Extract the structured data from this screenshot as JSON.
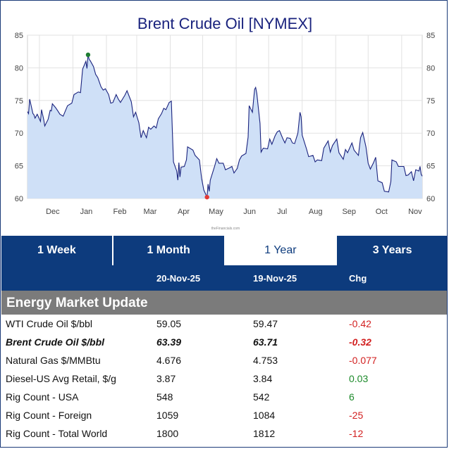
{
  "chart": {
    "title": "Brent Crude Oil [NYMEX]",
    "watermark": "theFinancials.com",
    "fill_color": "#cfe0f7",
    "line_color": "#1a237e",
    "high_marker_color": "#1e7d32",
    "low_marker_color": "#e53935",
    "y_ticks": [
      "85",
      "80",
      "75",
      "70",
      "65",
      "60"
    ],
    "x_ticks": [
      "Dec",
      "Jan",
      "Feb",
      "Mar",
      "Apr",
      "May",
      "Jun",
      "Jul",
      "Aug",
      "Sep",
      "Oct",
      "Nov"
    ]
  },
  "chart_data": {
    "type": "area",
    "title": "Brent Crude Oil [NYMEX]",
    "ylim": [
      60,
      85
    ],
    "x_range": [
      "2024-11-20",
      "2025-11-20"
    ],
    "grid": true,
    "y_ticks": [
      60,
      65,
      70,
      75,
      80,
      85
    ],
    "x_ticks": [
      {
        "label": "Dec",
        "date": "2024-12-01"
      },
      {
        "label": "Jan",
        "date": "2025-01-01"
      },
      {
        "label": "Feb",
        "date": "2025-02-01"
      },
      {
        "label": "Mar",
        "date": "2025-03-01"
      },
      {
        "label": "Apr",
        "date": "2025-04-01"
      },
      {
        "label": "May",
        "date": "2025-05-01"
      },
      {
        "label": "Jun",
        "date": "2025-06-01"
      },
      {
        "label": "Jul",
        "date": "2025-07-01"
      },
      {
        "label": "Aug",
        "date": "2025-08-01"
      },
      {
        "label": "Sep",
        "date": "2025-09-01"
      },
      {
        "label": "Oct",
        "date": "2025-10-01"
      },
      {
        "label": "Nov",
        "date": "2025-11-01"
      }
    ],
    "series": [
      {
        "points": [
          [
            "2024-11-20",
            73.3
          ],
          [
            "2024-11-21",
            73.0
          ],
          [
            "2024-11-22",
            75.2
          ],
          [
            "2024-11-25",
            73.0
          ],
          [
            "2024-11-26",
            72.8
          ],
          [
            "2024-11-27",
            72.3
          ],
          [
            "2024-11-29",
            72.9
          ],
          [
            "2024-12-02",
            71.8
          ],
          [
            "2024-12-03",
            73.6
          ],
          [
            "2024-12-05",
            72.1
          ],
          [
            "2024-12-06",
            71.1
          ],
          [
            "2024-12-09",
            72.1
          ],
          [
            "2024-12-11",
            73.5
          ],
          [
            "2024-12-12",
            73.4
          ],
          [
            "2024-12-13",
            74.5
          ],
          [
            "2024-12-16",
            73.9
          ],
          [
            "2024-12-18",
            73.4
          ],
          [
            "2024-12-20",
            72.9
          ],
          [
            "2024-12-23",
            72.6
          ],
          [
            "2024-12-27",
            74.2
          ],
          [
            "2024-12-31",
            74.6
          ],
          [
            "2025-01-02",
            75.9
          ],
          [
            "2025-01-06",
            76.3
          ],
          [
            "2025-01-08",
            76.2
          ],
          [
            "2025-01-10",
            79.8
          ],
          [
            "2025-01-13",
            81.0
          ],
          [
            "2025-01-14",
            79.9
          ],
          [
            "2025-01-15",
            82.0
          ],
          [
            "2025-01-16",
            81.3
          ],
          [
            "2025-01-17",
            81.1
          ],
          [
            "2025-01-20",
            80.2
          ],
          [
            "2025-01-22",
            79.0
          ],
          [
            "2025-01-24",
            78.5
          ],
          [
            "2025-01-27",
            77.1
          ],
          [
            "2025-01-29",
            76.6
          ],
          [
            "2025-01-31",
            76.8
          ],
          [
            "2025-02-03",
            75.9
          ],
          [
            "2025-02-05",
            74.6
          ],
          [
            "2025-02-07",
            74.7
          ],
          [
            "2025-02-10",
            75.9
          ],
          [
            "2025-02-12",
            75.2
          ],
          [
            "2025-02-14",
            74.7
          ],
          [
            "2025-02-18",
            75.8
          ],
          [
            "2025-02-20",
            76.5
          ],
          [
            "2025-02-24",
            74.8
          ],
          [
            "2025-02-26",
            72.5
          ],
          [
            "2025-02-28",
            73.2
          ],
          [
            "2025-03-03",
            71.6
          ],
          [
            "2025-03-05",
            69.3
          ],
          [
            "2025-03-07",
            70.4
          ],
          [
            "2025-03-10",
            69.3
          ],
          [
            "2025-03-12",
            70.9
          ],
          [
            "2025-03-14",
            70.6
          ],
          [
            "2025-03-17",
            71.1
          ],
          [
            "2025-03-19",
            70.8
          ],
          [
            "2025-03-21",
            72.2
          ],
          [
            "2025-03-24",
            73.0
          ],
          [
            "2025-03-26",
            73.8
          ],
          [
            "2025-03-28",
            73.6
          ],
          [
            "2025-03-31",
            74.7
          ],
          [
            "2025-04-02",
            74.9
          ],
          [
            "2025-04-03",
            70.1
          ],
          [
            "2025-04-04",
            65.6
          ],
          [
            "2025-04-07",
            64.2
          ],
          [
            "2025-04-08",
            62.8
          ],
          [
            "2025-04-09",
            65.5
          ],
          [
            "2025-04-10",
            63.3
          ],
          [
            "2025-04-11",
            64.8
          ],
          [
            "2025-04-14",
            64.9
          ],
          [
            "2025-04-16",
            65.9
          ],
          [
            "2025-04-17",
            67.9
          ],
          [
            "2025-04-22",
            67.4
          ],
          [
            "2025-04-24",
            66.6
          ],
          [
            "2025-04-28",
            65.9
          ],
          [
            "2025-04-30",
            63.1
          ],
          [
            "2025-05-02",
            61.3
          ],
          [
            "2025-05-05",
            60.2
          ],
          [
            "2025-05-06",
            62.2
          ],
          [
            "2025-05-07",
            61.1
          ],
          [
            "2025-05-08",
            62.8
          ],
          [
            "2025-05-12",
            64.9
          ],
          [
            "2025-05-14",
            66.1
          ],
          [
            "2025-05-16",
            65.4
          ],
          [
            "2025-05-20",
            65.4
          ],
          [
            "2025-05-22",
            64.4
          ],
          [
            "2025-05-26",
            64.7
          ],
          [
            "2025-05-28",
            64.9
          ],
          [
            "2025-05-30",
            63.9
          ],
          [
            "2025-06-02",
            64.6
          ],
          [
            "2025-06-04",
            65.9
          ],
          [
            "2025-06-06",
            66.5
          ],
          [
            "2025-06-10",
            66.9
          ],
          [
            "2025-06-12",
            69.4
          ],
          [
            "2025-06-13",
            74.2
          ],
          [
            "2025-06-16",
            73.2
          ],
          [
            "2025-06-18",
            76.7
          ],
          [
            "2025-06-19",
            77.0
          ],
          [
            "2025-06-20",
            76.1
          ],
          [
            "2025-06-23",
            71.5
          ],
          [
            "2025-06-24",
            67.1
          ],
          [
            "2025-06-26",
            67.7
          ],
          [
            "2025-06-30",
            67.6
          ],
          [
            "2025-07-02",
            69.1
          ],
          [
            "2025-07-04",
            68.3
          ],
          [
            "2025-07-07",
            69.6
          ],
          [
            "2025-07-09",
            70.2
          ],
          [
            "2025-07-11",
            70.4
          ],
          [
            "2025-07-14",
            69.2
          ],
          [
            "2025-07-16",
            68.5
          ],
          [
            "2025-07-18",
            69.3
          ],
          [
            "2025-07-21",
            69.2
          ],
          [
            "2025-07-23",
            68.5
          ],
          [
            "2025-07-25",
            68.4
          ],
          [
            "2025-07-28",
            70.0
          ],
          [
            "2025-07-30",
            73.2
          ],
          [
            "2025-07-31",
            72.5
          ],
          [
            "2025-08-01",
            69.7
          ],
          [
            "2025-08-05",
            67.6
          ],
          [
            "2025-08-07",
            66.4
          ],
          [
            "2025-08-11",
            66.6
          ],
          [
            "2025-08-13",
            65.6
          ],
          [
            "2025-08-15",
            65.9
          ],
          [
            "2025-08-19",
            65.8
          ],
          [
            "2025-08-21",
            67.7
          ],
          [
            "2025-08-25",
            68.8
          ],
          [
            "2025-08-27",
            67.1
          ],
          [
            "2025-08-29",
            68.1
          ],
          [
            "2025-09-02",
            69.1
          ],
          [
            "2025-09-04",
            67.0
          ],
          [
            "2025-09-08",
            66.0
          ],
          [
            "2025-09-10",
            67.5
          ],
          [
            "2025-09-12",
            67.0
          ],
          [
            "2025-09-16",
            68.5
          ],
          [
            "2025-09-18",
            67.4
          ],
          [
            "2025-09-22",
            66.6
          ],
          [
            "2025-09-24",
            69.3
          ],
          [
            "2025-09-26",
            70.1
          ],
          [
            "2025-09-29",
            67.9
          ],
          [
            "2025-10-01",
            65.4
          ],
          [
            "2025-10-03",
            64.5
          ],
          [
            "2025-10-06",
            65.5
          ],
          [
            "2025-10-08",
            66.3
          ],
          [
            "2025-10-10",
            62.7
          ],
          [
            "2025-10-14",
            62.4
          ],
          [
            "2025-10-16",
            61.1
          ],
          [
            "2025-10-20",
            61.0
          ],
          [
            "2025-10-22",
            62.6
          ],
          [
            "2025-10-23",
            65.9
          ],
          [
            "2025-10-27",
            65.6
          ],
          [
            "2025-10-29",
            64.9
          ],
          [
            "2025-11-03",
            64.9
          ],
          [
            "2025-11-05",
            63.5
          ],
          [
            "2025-11-07",
            63.6
          ],
          [
            "2025-11-10",
            64.1
          ],
          [
            "2025-11-12",
            62.7
          ],
          [
            "2025-11-14",
            64.4
          ],
          [
            "2025-11-17",
            64.2
          ],
          [
            "2025-11-18",
            64.9
          ],
          [
            "2025-11-19",
            63.7
          ],
          [
            "2025-11-20",
            63.4
          ]
        ]
      }
    ],
    "markers": [
      {
        "kind": "high",
        "date": "2025-01-15",
        "value": 82.0,
        "color": "#1e7d32"
      },
      {
        "kind": "low",
        "date": "2025-05-05",
        "value": 60.2,
        "color": "#e53935"
      }
    ]
  },
  "tabs": [
    {
      "label": "1 Week",
      "active": false
    },
    {
      "label": "1 Month",
      "active": false
    },
    {
      "label": "1 Year",
      "active": true
    },
    {
      "label": "3 Years",
      "active": false
    }
  ],
  "table": {
    "date1": "20-Nov-25",
    "date2": "19-Nov-25",
    "chg": "Chg",
    "section_title": "Energy Market Update",
    "rows": [
      {
        "name": "WTI Crude Oil $/bbl",
        "v1": "59.05",
        "v2": "59.47",
        "chg": "-0.42",
        "dir": "neg"
      },
      {
        "name": "Brent Crude Oil $/bbl",
        "v1": "63.39",
        "v2": "63.71",
        "chg": "-0.32",
        "dir": "neg",
        "bold": true
      },
      {
        "name": "Natural Gas $/MMBtu",
        "v1": "4.676",
        "v2": "4.753",
        "chg": "-0.077",
        "dir": "neg"
      },
      {
        "name": "Diesel-US Avg Retail, $/g",
        "v1": "3.87",
        "v2": "3.84",
        "chg": "0.03",
        "dir": "pos"
      },
      {
        "name": "Rig Count - USA",
        "v1": "548",
        "v2": "542",
        "chg": "6",
        "dir": "pos"
      },
      {
        "name": "Rig Count - Foreign",
        "v1": "1059",
        "v2": "1084",
        "chg": "-25",
        "dir": "neg"
      },
      {
        "name": "Rig Count - Total World",
        "v1": "1800",
        "v2": "1812",
        "chg": "-12",
        "dir": "neg"
      }
    ]
  }
}
